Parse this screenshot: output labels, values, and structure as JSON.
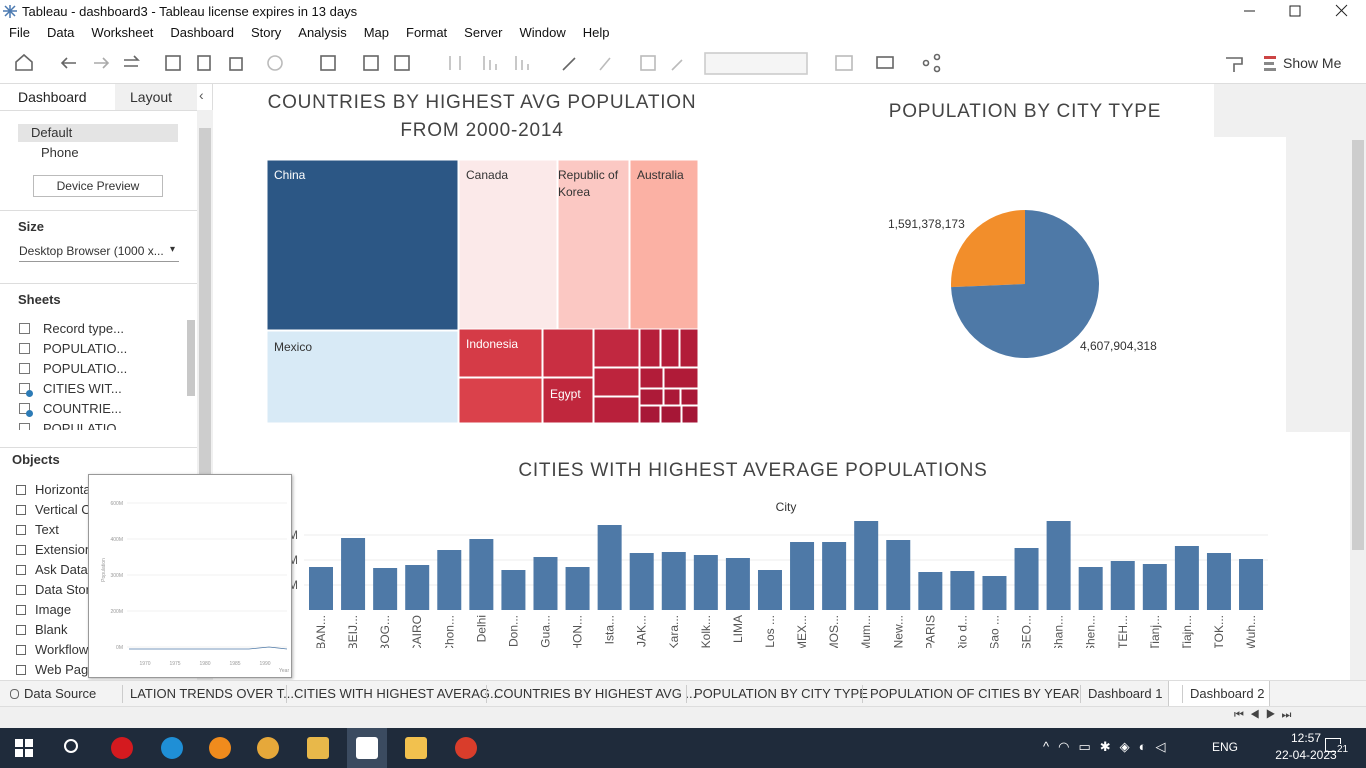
{
  "window": {
    "title": "Tableau - dashboard3 - Tableau license expires in 13 days"
  },
  "menu": [
    "File",
    "Data",
    "Worksheet",
    "Dashboard",
    "Story",
    "Analysis",
    "Map",
    "Format",
    "Server",
    "Window",
    "Help"
  ],
  "toolbar": {
    "show_me": "Show Me"
  },
  "side_panel": {
    "tabs": [
      "Dashboard",
      "Layout"
    ],
    "devices": [
      "Default",
      "Phone"
    ],
    "device_preview": "Device Preview",
    "size_heading": "Size",
    "size_value": "Desktop Browser (1000 x...",
    "sheets_heading": "Sheets",
    "sheets": [
      "Record type...",
      "POPULATIO...",
      "POPULATIO...",
      "CITIES WIT...",
      "COUNTRIE...",
      "POPULATIO..."
    ],
    "objects_heading": "Objects",
    "objects": [
      "Horizonta",
      "Vertical C",
      "Text",
      "Extension",
      "Ask Data",
      "Data Stor",
      "Image",
      "Blank",
      "Workflow",
      "Web Page"
    ]
  },
  "thumbnail": {
    "yticks": [
      "600M",
      "400M",
      "300M",
      "200M",
      "0M"
    ],
    "xticks": [
      "1970",
      "1975",
      "1980",
      "1985",
      "1990"
    ],
    "y_label": "Population",
    "x_label": "Year"
  },
  "dashboard": {
    "treemap": {
      "title": "COUNTRIES BY HIGHEST AVG POPULATION FROM 2000-2014",
      "labels": [
        "China",
        "Canada",
        "Republic of Korea",
        "Australia",
        "Mexico",
        "Indonesia",
        "Egypt"
      ]
    },
    "pie_chart": {
      "type": "pie",
      "title": "POPULATION BY CITY TYPE",
      "values": [
        1591378173,
        4607904318
      ],
      "value_labels": [
        "1,591,378,173",
        "4,607,904,318"
      ],
      "colors": [
        "#f28e2b",
        "#4e79a7"
      ]
    },
    "bar_chart": {
      "type": "bar",
      "title": "CITIES WITH HIGHEST AVERAGE POPULATIONS",
      "x_label": "City",
      "categories": [
        "BAN...",
        "BEIJ...",
        "BOG...",
        "CAIRO",
        "Chon...",
        "Delhi",
        "Don...",
        "Gua...",
        "HON...",
        "Ista...",
        "JAK...",
        "Kara...",
        "Kolk...",
        "LIMA",
        "Los ...",
        "MEX...",
        "MOS...",
        "Mum...",
        "New...",
        "PARIS",
        "Rio d...",
        "Sao ...",
        "SEO...",
        "Shan...",
        "Shen...",
        "TEH...",
        "Tianj...",
        "Tiajn...",
        "TOK...",
        "Wuh..."
      ],
      "values": [
        17.2,
        28.8,
        16.8,
        18,
        24,
        28.4,
        16,
        21.2,
        17.2,
        34,
        22.8,
        23.2,
        22,
        20.8,
        16,
        27.2,
        27.2,
        35.6,
        28,
        15.2,
        15.6,
        13.6,
        24.8,
        35.6,
        17.2,
        19.6,
        18.4,
        25.6,
        22.8,
        20.4
      ],
      "color": "#4e79a7",
      "ylim": [
        0,
        36
      ],
      "yticks": [
        {
          "value": 10,
          "label": "10M"
        },
        {
          "value": 20,
          "label": "20M"
        },
        {
          "value": 30,
          "label": "30M"
        }
      ],
      "grid": true
    }
  },
  "sheet_tabs": [
    "Data Source",
    "LATION TRENDS OVER T...",
    "CITIES WITH HIGHEST AVERAG...",
    "COUNTRIES BY HIGHEST AVG ...",
    "POPULATION BY CITY TYPE",
    "POPULATION OF CITIES BY YEAR",
    "Dashboard 1",
    "Dashboard 2"
  ],
  "taskbar": {
    "language": "ENG",
    "time": "12:57",
    "date": "22-04-2023",
    "notifications": "21"
  }
}
